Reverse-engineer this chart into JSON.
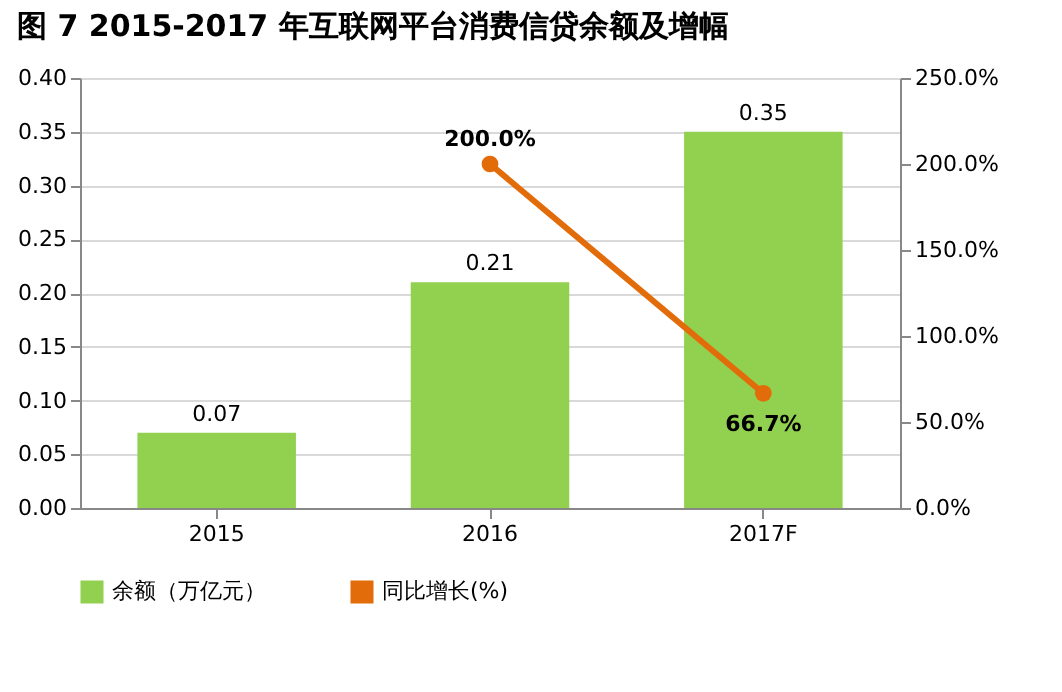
{
  "chart_data": {
    "type": "bar",
    "title": "图 7  2015-2017 年互联网平台消费信贷余额及增幅",
    "categories": [
      "2015",
      "2016",
      "2017F"
    ],
    "series": [
      {
        "name": "余额（万亿元）",
        "color": "#92d050",
        "values": [
          0.07,
          0.21,
          0.35
        ],
        "value_labels": [
          "0.07",
          "0.21",
          "0.35"
        ]
      },
      {
        "name": "同比增长(%)",
        "type": "line",
        "axis": "y2",
        "color": "#e36c0a",
        "values": [
          null,
          200.0,
          66.7
        ],
        "value_labels": [
          null,
          "200.0%",
          "66.7%"
        ]
      }
    ],
    "ylim": [
      0,
      0.4
    ],
    "yticks": [
      {
        "value": 0,
        "label": "0.00"
      },
      {
        "value": 0.05,
        "label": "0.05"
      },
      {
        "value": 0.1,
        "label": "0.10"
      },
      {
        "value": 0.15,
        "label": "0.15"
      },
      {
        "value": 0.2,
        "label": "0.20"
      },
      {
        "value": 0.25,
        "label": "0.25"
      },
      {
        "value": 0.3,
        "label": "0.30"
      },
      {
        "value": 0.35,
        "label": "0.35"
      },
      {
        "value": 0.4,
        "label": "0.40"
      }
    ],
    "y2lim": [
      0,
      250
    ],
    "y2ticks": [
      {
        "value": 0,
        "label": "0.0%"
      },
      {
        "value": 50,
        "label": "50.0%"
      },
      {
        "value": 100,
        "label": "100.0%"
      },
      {
        "value": 150,
        "label": "150.0%"
      },
      {
        "value": 200,
        "label": "200.0%"
      },
      {
        "value": 250,
        "label": "250.0%"
      }
    ],
    "grid": "y",
    "legend": "bottom",
    "marker": "circle",
    "line_style": "solid"
  }
}
